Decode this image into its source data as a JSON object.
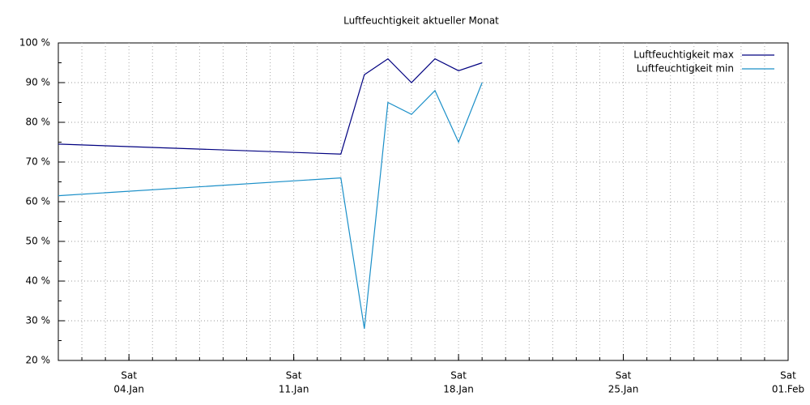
{
  "chart_data": {
    "type": "line",
    "title": "Luftfeuchtigkeit aktueller Monat",
    "x": [
      "01.Jan",
      "13.Jan",
      "14.Jan",
      "15.Jan",
      "16.Jan",
      "17.Jan",
      "18.Jan",
      "19.Jan"
    ],
    "series": [
      {
        "name": "Luftfeuchtigkeit max",
        "color": "#000080",
        "values": [
          74.5,
          72,
          92,
          96,
          90,
          96,
          93,
          95
        ]
      },
      {
        "name": "Luftfeuchtigkeit min",
        "color": "#1a8fc8",
        "values": [
          61.5,
          66,
          28,
          85,
          82,
          88,
          75,
          90
        ]
      }
    ],
    "xlim": [
      "01.Jan",
      "01.Feb"
    ],
    "xticks": [
      {
        "value": "04.Jan",
        "weekday": "Sat"
      },
      {
        "value": "11.Jan",
        "weekday": "Sat"
      },
      {
        "value": "18.Jan",
        "weekday": "Sat"
      },
      {
        "value": "25.Jan",
        "weekday": "Sat"
      },
      {
        "value": "01.Feb",
        "weekday": "Sat"
      }
    ],
    "ylim": [
      20,
      100
    ],
    "yticks": [
      {
        "value": 20,
        "label": "20 %"
      },
      {
        "value": 30,
        "label": "30 %"
      },
      {
        "value": 40,
        "label": "40 %"
      },
      {
        "value": 50,
        "label": "50 %"
      },
      {
        "value": 60,
        "label": "60 %"
      },
      {
        "value": 70,
        "label": "70 %"
      },
      {
        "value": 80,
        "label": "80 %"
      },
      {
        "value": 90,
        "label": "90 %"
      },
      {
        "value": 100,
        "label": "100 %"
      }
    ],
    "grid": true,
    "legend": "top-right"
  }
}
